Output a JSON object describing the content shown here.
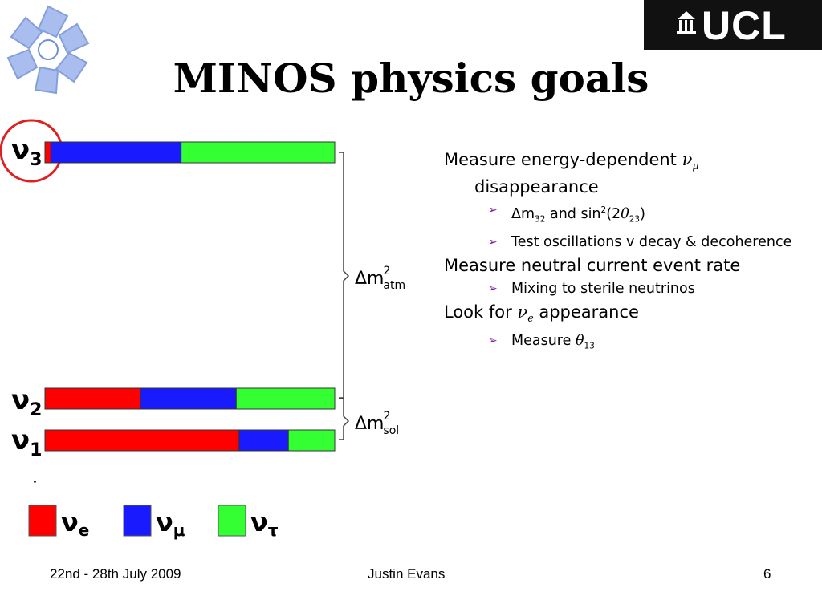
{
  "header": {
    "title": "MINOS physics goals",
    "institution_logo": "UCL",
    "conference_logo": "knot-logo"
  },
  "diagram": {
    "states": [
      "ν3",
      "ν2",
      "ν1"
    ],
    "splittings": [
      "Δm²atm",
      "Δm²sol"
    ],
    "highlighted_state": "ν3",
    "flavour_fractions": {
      "nu3": {
        "e": 0.02,
        "mu": 0.45,
        "tau": 0.53
      },
      "nu2": {
        "e": 0.33,
        "mu": 0.33,
        "tau": 0.34
      },
      "nu1": {
        "e": 0.67,
        "mu": 0.17,
        "tau": 0.16
      }
    },
    "colors": {
      "e": "#ff0000",
      "mu": "#1a1aff",
      "tau": "#33ff33",
      "circle": "#e02020"
    },
    "legend": [
      {
        "flavor": "e",
        "label": "νe"
      },
      {
        "flavor": "mu",
        "label": "νμ"
      },
      {
        "flavor": "tau",
        "label": "ντ"
      }
    ]
  },
  "bullets": {
    "b1_text_a": "Measure energy-dependent ",
    "b1_nu": "ν",
    "b1_sub": "μ",
    "b1_text_b": "disappearance",
    "b1_s1_a": "Δm",
    "b1_s1_sub1": "32",
    "b1_s1_b": " and sin",
    "b1_s1_sup": "2",
    "b1_s1_c": "(2",
    "b1_s1_theta": "θ",
    "b1_s1_sub2": "23",
    "b1_s1_d": ")",
    "b1_s2": "Test oscillations v decay & decoherence",
    "b2_text": "Measure neutral current event rate",
    "b2_s1": "Mixing to sterile neutrinos",
    "b3_text_a": "Look for ",
    "b3_nu": "ν",
    "b3_sub": "e",
    "b3_text_b": " appearance",
    "b3_s1_a": "Measure ",
    "b3_s1_theta": "θ",
    "b3_s1_sub": "13",
    "arrow_icon": "arrow-bullet-icon",
    "arrow_color": "#7a1fa2"
  },
  "footer": {
    "date": "22nd - 28th July 2009",
    "author": "Justin Evans",
    "page": "6"
  }
}
